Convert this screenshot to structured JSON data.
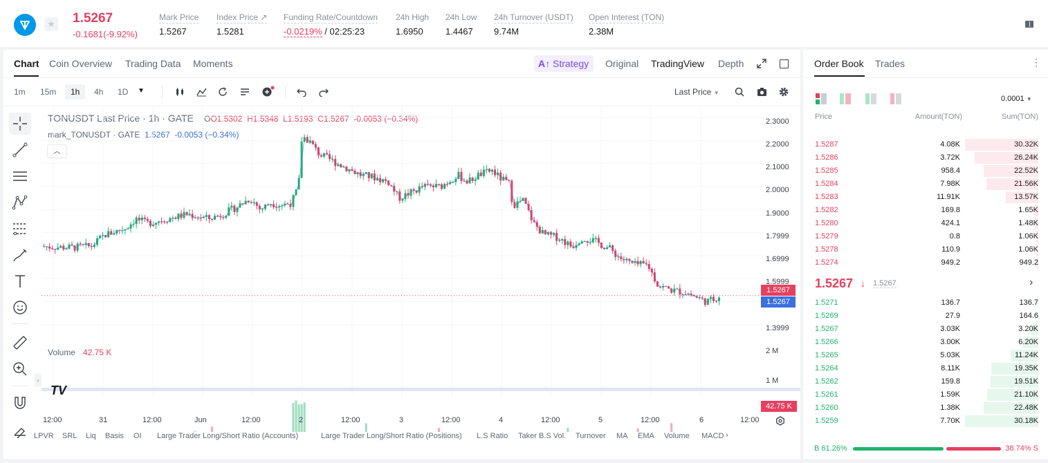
{
  "header": {
    "last_price": "1.5267",
    "change": "-0.1681(-9.92%)",
    "stats": [
      {
        "label": "Mark Price",
        "value": "1.5267"
      },
      {
        "label": "Index Price ↗",
        "value": "1.5281"
      },
      {
        "label": "Funding Rate/Countdown",
        "value_red": "-0.0219%",
        "value": " / 02:25:23"
      },
      {
        "label": "24h High",
        "value": "1.6950"
      },
      {
        "label": "24h Low",
        "value": "1.4467"
      },
      {
        "label": "24h Turnover (USDT)",
        "value": "9.74M"
      },
      {
        "label": "Open Interest (TON)",
        "value": "2.38M"
      }
    ]
  },
  "chart_tabs": [
    "Chart",
    "Coin Overview",
    "Trading Data",
    "Moments"
  ],
  "view_tabs": {
    "strategy": "Strategy",
    "original": "Original",
    "tradingview": "TradingView",
    "depth": "Depth"
  },
  "timeframes": [
    "1m",
    "15m",
    "1h",
    "4h",
    "1D"
  ],
  "price_type": "Last Price",
  "legend": {
    "title": "TONUSDT Last Price · 1h · GATE",
    "o": "O1.5302",
    "h": "H1.5348",
    "l": "L1.5193",
    "c": "C1.5267",
    "chg": "-0.0053 (−0.34%)",
    "mark_name": "mark_TONUSDT · GATE",
    "mark_val": "1.5267",
    "mark_chg": "-0.0053 (−0.34%)",
    "volume_label": "Volume",
    "volume_val": "42.75 K"
  },
  "price_axis": [
    "2.3000",
    "2.2000",
    "2.1000",
    "2.0000",
    "1.9000",
    "1.7999",
    "1.6999",
    "1.5999",
    "1.4999",
    "1.3999"
  ],
  "price_tags": {
    "last": "1.5267",
    "mark": "1.5267"
  },
  "volume_axis": [
    "2 M",
    "1 M"
  ],
  "volume_tag": "42.75 K",
  "time_axis": [
    "12:00",
    "31",
    "12:00",
    "Jun",
    "12:00",
    "2",
    "12:00",
    "3",
    "12:00",
    "4",
    "12:00",
    "5",
    "12:00",
    "6",
    "12:00"
  ],
  "indicators": [
    "LPVR",
    "SRL",
    "Liq",
    "Basis",
    "OI",
    "Large Trader Long/Short Ratio (Accounts)",
    "Large Trader Long/Short Ratio (Positions)",
    "L.S Ratio",
    "Taker B.S Vol.",
    "Turnover",
    "MA",
    "EMA",
    "Volume",
    "MACD"
  ],
  "colors": {
    "up": "#20b26c",
    "down": "#e5405f",
    "accent": "#7b4ae2",
    "mark_line": "#3b6fe0"
  },
  "orderbook": {
    "tabs": [
      "Order Book",
      "Trades"
    ],
    "precision": "0.0001",
    "headers": [
      "Price",
      "Amount(TON)",
      "Sum(TON)"
    ],
    "asks": [
      {
        "price": "1.5287",
        "amount": "4.08K",
        "sum": "30.32K",
        "depth": 1.0
      },
      {
        "price": "1.5286",
        "amount": "3.72K",
        "sum": "26.24K",
        "depth": 0.865
      },
      {
        "price": "1.5285",
        "amount": "958.4",
        "sum": "22.52K",
        "depth": 0.743
      },
      {
        "price": "1.5284",
        "amount": "7.98K",
        "sum": "21.56K",
        "depth": 0.711
      },
      {
        "price": "1.5283",
        "amount": "11.91K",
        "sum": "13.57K",
        "depth": 0.448
      },
      {
        "price": "1.5282",
        "amount": "169.8",
        "sum": "1.65K",
        "depth": 0.054
      },
      {
        "price": "1.5280",
        "amount": "424.1",
        "sum": "1.48K",
        "depth": 0.049
      },
      {
        "price": "1.5279",
        "amount": "0.8",
        "sum": "1.06K",
        "depth": 0.035
      },
      {
        "price": "1.5278",
        "amount": "110.9",
        "sum": "1.06K",
        "depth": 0.035
      },
      {
        "price": "1.5274",
        "amount": "949.2",
        "sum": "949.2",
        "depth": 0.031
      }
    ],
    "mid_price": "1.5267",
    "mid_mark": "1.5267",
    "bids": [
      {
        "price": "1.5271",
        "amount": "136.7",
        "sum": "136.7",
        "depth": 0.005
      },
      {
        "price": "1.5269",
        "amount": "27.9",
        "sum": "164.6",
        "depth": 0.006
      },
      {
        "price": "1.5267",
        "amount": "3.03K",
        "sum": "3.20K",
        "depth": 0.106
      },
      {
        "price": "1.5266",
        "amount": "3.00K",
        "sum": "6.20K",
        "depth": 0.205
      },
      {
        "price": "1.5265",
        "amount": "5.03K",
        "sum": "11.24K",
        "depth": 0.373
      },
      {
        "price": "1.5264",
        "amount": "8.11K",
        "sum": "19.35K",
        "depth": 0.641
      },
      {
        "price": "1.5262",
        "amount": "159.8",
        "sum": "19.51K",
        "depth": 0.647
      },
      {
        "price": "1.5261",
        "amount": "1.59K",
        "sum": "21.10K",
        "depth": 0.699
      },
      {
        "price": "1.5260",
        "amount": "1.38K",
        "sum": "22.48K",
        "depth": 0.745
      },
      {
        "price": "1.5259",
        "amount": "7.70K",
        "sum": "30.18K",
        "depth": 1.0
      }
    ],
    "buy_label": "B 61.26%",
    "sell_label": "38.74% S",
    "buy_ratio": 0.6126
  }
}
